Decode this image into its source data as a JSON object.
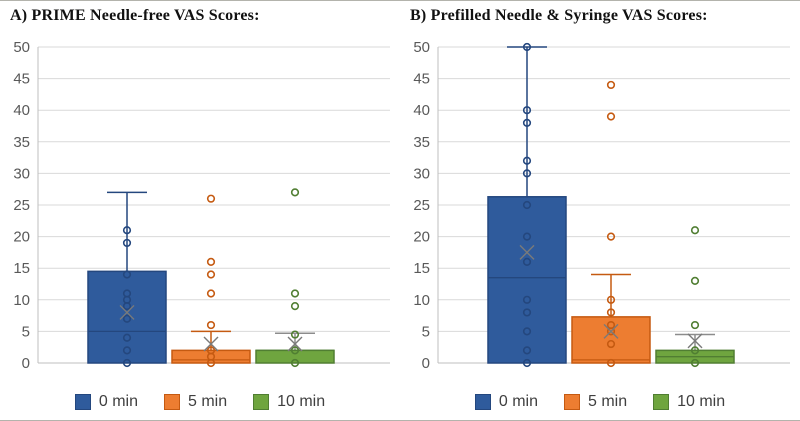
{
  "figure": {
    "background": "#ffffff",
    "border_color": "#b3b3ac",
    "gridline_color": "#d9d9d9",
    "axis_color": "#bfbfbf",
    "tick_label_color": "#595959",
    "mean_marker_color": "#7a7a7a"
  },
  "panels": [
    {
      "id": "A",
      "title": "A)  PRIME Needle-free VAS Scores:",
      "legend": [
        {
          "label": "0 min",
          "color": "#2F5B9C",
          "border": "#24477E"
        },
        {
          "label": "5 min",
          "color": "#ED7D31",
          "border": "#C55A11"
        },
        {
          "label": "10 min",
          "color": "#6FA53F",
          "border": "#507E32"
        }
      ],
      "chart_data": {
        "type": "box",
        "title": "A) PRIME Needle-free VAS Scores:",
        "xlabel": "",
        "ylabel": "",
        "ylim": [
          0,
          50
        ],
        "yticks": [
          0,
          5,
          10,
          15,
          20,
          25,
          30,
          35,
          40,
          45,
          50
        ],
        "grid": true,
        "legend_position": "bottom",
        "series": [
          {
            "name": "0 min",
            "fill": "#2F5B9C",
            "stroke": "#24477E",
            "whisker_color": "#24477E",
            "q1": 0,
            "median": 5,
            "q3": 14.5,
            "whisker_low": 0,
            "whisker_high": 27,
            "mean": 8,
            "points": [
              21,
              19,
              14,
              11,
              10,
              9,
              7,
              4,
              2,
              0
            ]
          },
          {
            "name": "5 min",
            "fill": "#ED7D31",
            "stroke": "#C55A11",
            "whisker_color": "#C55A11",
            "q1": 0,
            "median": 0.5,
            "q3": 2,
            "whisker_low": 0,
            "whisker_high": 5,
            "mean": 3,
            "points": [
              26,
              16,
              14,
              11,
              6,
              2,
              1,
              0
            ]
          },
          {
            "name": "10 min",
            "fill": "#6FA53F",
            "stroke": "#507E32",
            "whisker_color": "#8C8C8C",
            "q1": 0,
            "median": 2,
            "q3": 2,
            "whisker_low": 0,
            "whisker_high": 4.7,
            "mean": 3,
            "points": [
              27,
              11,
              9,
              4.5,
              2,
              0
            ]
          }
        ]
      }
    },
    {
      "id": "B",
      "title": "B)  Prefilled Needle & Syringe VAS Scores:",
      "legend": [
        {
          "label": "0 min",
          "color": "#2F5B9C",
          "border": "#24477E"
        },
        {
          "label": "5 min",
          "color": "#ED7D31",
          "border": "#C55A11"
        },
        {
          "label": "10 min",
          "color": "#6FA53F",
          "border": "#507E32"
        }
      ],
      "chart_data": {
        "type": "box",
        "title": "B) Prefilled Needle & Syringe VAS Scores:",
        "xlabel": "",
        "ylabel": "",
        "ylim": [
          0,
          50
        ],
        "yticks": [
          0,
          5,
          10,
          15,
          20,
          25,
          30,
          35,
          40,
          45,
          50
        ],
        "grid": true,
        "legend_position": "bottom",
        "series": [
          {
            "name": "0 min",
            "fill": "#2F5B9C",
            "stroke": "#24477E",
            "whisker_color": "#24477E",
            "q1": 0,
            "median": 13.5,
            "q3": 26.3,
            "whisker_low": 0,
            "whisker_high": 50,
            "mean": 17.5,
            "points": [
              50,
              40,
              38,
              32,
              30,
              25,
              20,
              16,
              10,
              8,
              5,
              2,
              0
            ]
          },
          {
            "name": "5 min",
            "fill": "#ED7D31",
            "stroke": "#C55A11",
            "whisker_color": "#C55A11",
            "q1": 0,
            "median": 0.5,
            "q3": 7.3,
            "whisker_low": 0,
            "whisker_high": 14,
            "mean": 5,
            "points": [
              44,
              39,
              20,
              10,
              8,
              6,
              5,
              3,
              0
            ]
          },
          {
            "name": "10 min",
            "fill": "#6FA53F",
            "stroke": "#507E32",
            "whisker_color": "#8C8C8C",
            "q1": 0,
            "median": 1,
            "q3": 2,
            "whisker_low": 0,
            "whisker_high": 4.5,
            "mean": 3.5,
            "points": [
              21,
              13,
              6,
              2,
              0
            ]
          }
        ]
      }
    }
  ]
}
